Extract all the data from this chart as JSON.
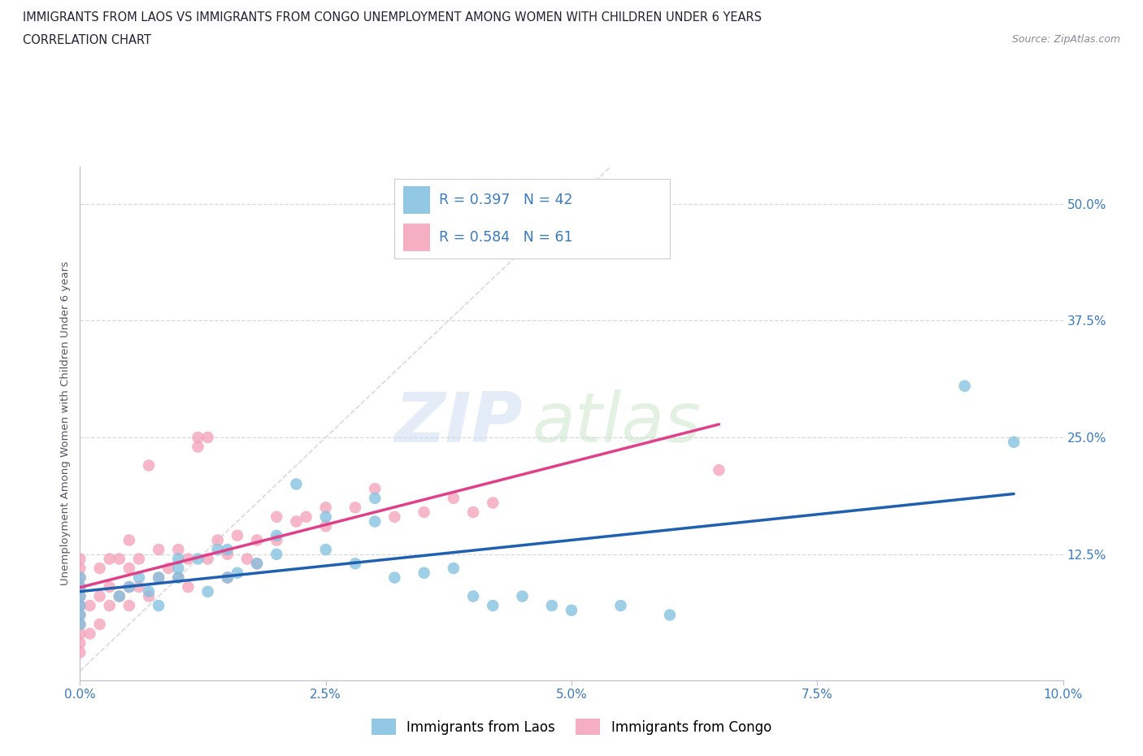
{
  "title_line1": "IMMIGRANTS FROM LAOS VS IMMIGRANTS FROM CONGO UNEMPLOYMENT AMONG WOMEN WITH CHILDREN UNDER 6 YEARS",
  "title_line2": "CORRELATION CHART",
  "source_text": "Source: ZipAtlas.com",
  "ylabel": "Unemployment Among Women with Children Under 6 years",
  "xlim": [
    0.0,
    0.1
  ],
  "ylim": [
    -0.01,
    0.54
  ],
  "xtick_labels": [
    "0.0%",
    "2.5%",
    "5.0%",
    "7.5%",
    "10.0%"
  ],
  "xtick_vals": [
    0.0,
    0.025,
    0.05,
    0.075,
    0.1
  ],
  "ytick_labels": [
    "12.5%",
    "25.0%",
    "37.5%",
    "50.0%"
  ],
  "ytick_vals": [
    0.125,
    0.25,
    0.375,
    0.5
  ],
  "watermark_zip": "ZIP",
  "watermark_atlas": "atlas",
  "legend_label_laos": "Immigrants from Laos",
  "legend_label_congo": "Immigrants from Congo",
  "R_laos": 0.397,
  "N_laos": 42,
  "R_congo": 0.584,
  "N_congo": 61,
  "color_laos": "#7fbfdf",
  "color_congo": "#f4a0b8",
  "color_laos_line": "#2060b0",
  "color_congo_line": "#e0408a",
  "color_diag_line": "#d0d0d8",
  "background_color": "#ffffff",
  "grid_color": "#d8d8e0",
  "title_fontsize": 10.5,
  "subtitle_fontsize": 10.5,
  "axis_label_fontsize": 9.5,
  "tick_fontsize": 11,
  "legend_fontsize": 12,
  "laos_x": [
    0.0,
    0.0,
    0.0,
    0.0,
    0.0,
    0.0,
    0.004,
    0.005,
    0.006,
    0.007,
    0.008,
    0.008,
    0.01,
    0.01,
    0.01,
    0.012,
    0.013,
    0.014,
    0.015,
    0.015,
    0.016,
    0.018,
    0.02,
    0.02,
    0.022,
    0.025,
    0.025,
    0.028,
    0.03,
    0.03,
    0.032,
    0.035,
    0.038,
    0.04,
    0.042,
    0.045,
    0.048,
    0.05,
    0.055,
    0.06,
    0.09,
    0.095
  ],
  "laos_y": [
    0.05,
    0.06,
    0.07,
    0.08,
    0.09,
    0.1,
    0.08,
    0.09,
    0.1,
    0.085,
    0.07,
    0.1,
    0.1,
    0.11,
    0.12,
    0.12,
    0.085,
    0.13,
    0.1,
    0.13,
    0.105,
    0.115,
    0.125,
    0.145,
    0.2,
    0.13,
    0.165,
    0.115,
    0.16,
    0.185,
    0.1,
    0.105,
    0.11,
    0.08,
    0.07,
    0.08,
    0.07,
    0.065,
    0.07,
    0.06,
    0.305,
    0.245
  ],
  "congo_x": [
    0.0,
    0.0,
    0.0,
    0.0,
    0.0,
    0.0,
    0.0,
    0.0,
    0.0,
    0.0,
    0.0,
    0.001,
    0.001,
    0.002,
    0.002,
    0.002,
    0.003,
    0.003,
    0.003,
    0.004,
    0.004,
    0.005,
    0.005,
    0.005,
    0.005,
    0.006,
    0.006,
    0.007,
    0.007,
    0.008,
    0.008,
    0.009,
    0.01,
    0.01,
    0.011,
    0.011,
    0.012,
    0.012,
    0.013,
    0.013,
    0.014,
    0.015,
    0.015,
    0.016,
    0.017,
    0.018,
    0.018,
    0.02,
    0.02,
    0.022,
    0.023,
    0.025,
    0.025,
    0.028,
    0.03,
    0.032,
    0.035,
    0.038,
    0.04,
    0.042,
    0.065
  ],
  "congo_y": [
    0.02,
    0.03,
    0.04,
    0.05,
    0.06,
    0.07,
    0.08,
    0.09,
    0.1,
    0.11,
    0.12,
    0.04,
    0.07,
    0.05,
    0.08,
    0.11,
    0.07,
    0.09,
    0.12,
    0.08,
    0.12,
    0.07,
    0.09,
    0.11,
    0.14,
    0.09,
    0.12,
    0.08,
    0.22,
    0.1,
    0.13,
    0.11,
    0.1,
    0.13,
    0.09,
    0.12,
    0.24,
    0.25,
    0.12,
    0.25,
    0.14,
    0.1,
    0.125,
    0.145,
    0.12,
    0.115,
    0.14,
    0.14,
    0.165,
    0.16,
    0.165,
    0.155,
    0.175,
    0.175,
    0.195,
    0.165,
    0.17,
    0.185,
    0.17,
    0.18,
    0.215
  ]
}
